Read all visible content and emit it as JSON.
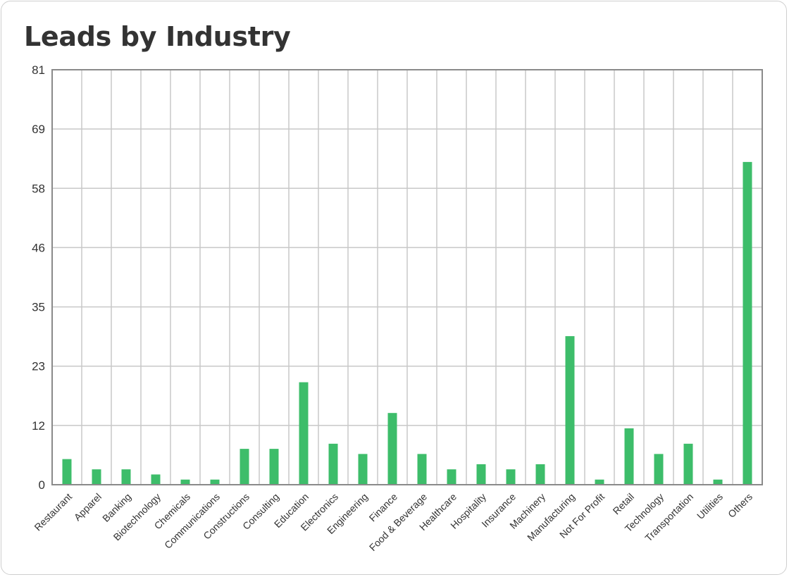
{
  "chart_data": {
    "type": "bar",
    "title": "Leads by Industry",
    "xlabel": "",
    "ylabel": "",
    "categories": [
      "Restaurant",
      "Apparel",
      "Banking",
      "Biotechnology",
      "Chemicals",
      "Communications",
      "Constructions",
      "Consulting",
      "Education",
      "Electronics",
      "Engineering",
      "Finance",
      "Food & Beverage",
      "Healthcare",
      "Hospitality",
      "Insurance",
      "Machinery",
      "Manufacturing",
      "Not For Profit",
      "Retail",
      "Technology",
      "Transportation",
      "Utilities",
      "Others"
    ],
    "values": [
      5,
      3,
      3,
      2,
      1,
      1,
      7,
      7,
      20,
      8,
      6,
      14,
      6,
      3,
      4,
      3,
      4,
      29,
      1,
      11,
      6,
      8,
      1,
      63
    ],
    "y_ticks": [
      "0",
      "12",
      "23",
      "35",
      "46",
      "58",
      "69",
      "81"
    ],
    "ylim": [
      0,
      81
    ],
    "grid": true,
    "legend": "none",
    "bar_color": "#3dbd6a"
  }
}
